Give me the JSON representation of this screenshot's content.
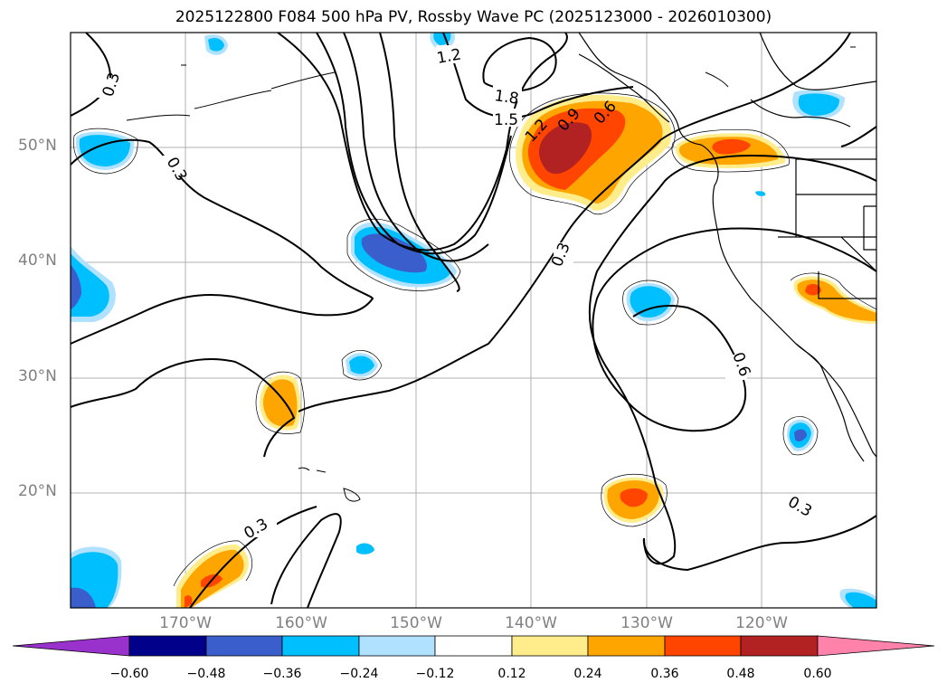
{
  "title": "2025122800 F084 500 hPa PV, Rossby Wave PC (2025123000 - 2026010300)",
  "map": {
    "lon_range": [
      -180,
      -110
    ],
    "lat_range": [
      10,
      60
    ],
    "lat_labels": [
      "50°N",
      "40°N",
      "30°N",
      "20°N"
    ],
    "lon_labels": [
      "170°W",
      "160°W",
      "150°W",
      "140°W",
      "130°W",
      "120°W"
    ],
    "contour_labels": [
      "0.3",
      "0.3",
      "1.2",
      "1.8",
      "1.5",
      "1.2",
      "0.9",
      "0.6",
      "0.3",
      "0.6",
      "0.3",
      "0.3"
    ]
  },
  "colorbar": {
    "ticks": [
      "−0.60",
      "−0.48",
      "−0.36",
      "−0.24",
      "−0.12",
      "0.12",
      "0.24",
      "0.36",
      "0.48",
      "0.60"
    ],
    "colors": [
      "#9932cc",
      "#00008b",
      "#3a5fcd",
      "#00bfff",
      "#b0e2ff",
      "#ffffff",
      "#ffec8b",
      "#ffa500",
      "#ff4500",
      "#b22222",
      "#ff82ab"
    ]
  }
}
